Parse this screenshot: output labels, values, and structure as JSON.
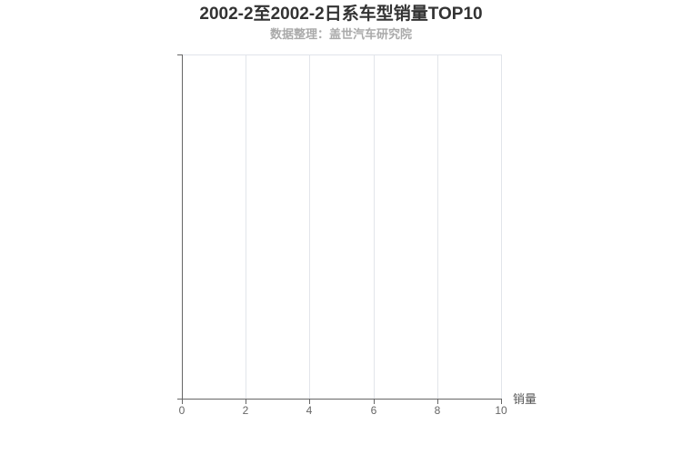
{
  "header": {
    "title": "2002-2至2002-2日系车型销量TOP10",
    "subtitle": "数据整理：盖世汽车研究院"
  },
  "chart_data": {
    "type": "bar",
    "orientation": "horizontal",
    "title": "2002-2至2002-2日系车型销量TOP10",
    "subtitle": "数据整理：盖世汽车研究院",
    "categories": [],
    "values": [],
    "xlabel": "销量",
    "ylabel": "",
    "xlim": [
      0,
      10
    ],
    "xticks": [
      0,
      2,
      4,
      6,
      8,
      10
    ],
    "grid": true,
    "legend": null,
    "colors": {
      "title": "#333333",
      "subtitle": "#aaaaaa",
      "axis_line": "#666666",
      "grid_line": "#e2e5ea",
      "tick_label": "#666666",
      "axis_name": "#555555",
      "background": "#ffffff"
    }
  }
}
